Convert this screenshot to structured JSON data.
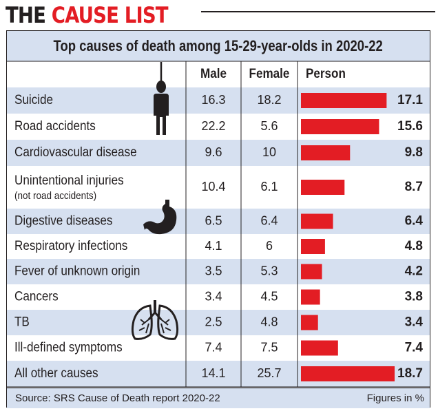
{
  "headline": {
    "part1": "THE ",
    "part2": "CAUSE LIST"
  },
  "chart_data": {
    "type": "table",
    "title": "Top causes of death among 15-29-year-olds in 2020-22",
    "columns": [
      "Male",
      "Female",
      "Person"
    ],
    "rows": [
      {
        "cause": "Suicide",
        "male": "16.3",
        "female": "18.2",
        "person": 17.1
      },
      {
        "cause": "Road accidents",
        "male": "22.2",
        "female": "5.6",
        "person": 15.6
      },
      {
        "cause": "Cardiovascular disease",
        "male": "9.6",
        "female": "10",
        "person": 9.8
      },
      {
        "cause": "Unintentional injuries",
        "note": "(not road accidents)",
        "male": "10.4",
        "female": "6.1",
        "person": 8.7
      },
      {
        "cause": "Digestive diseases",
        "male": "6.5",
        "female": "6.4",
        "person": 6.4
      },
      {
        "cause": "Respiratory infections",
        "male": "4.1",
        "female": "6",
        "person": 4.8
      },
      {
        "cause": "Fever of unknown origin",
        "male": "3.5",
        "female": "5.3",
        "person": 4.2
      },
      {
        "cause": "Cancers",
        "male": "3.4",
        "female": "4.5",
        "person": 3.8
      },
      {
        "cause": "TB",
        "male": "2.5",
        "female": "4.8",
        "person": 3.4
      },
      {
        "cause": "Ill-defined symptoms",
        "male": "7.4",
        "female": "7.5",
        "person": 7.4
      },
      {
        "cause": "All other causes",
        "male": "14.1",
        "female": "25.7",
        "person": 18.7
      }
    ],
    "bar_max": 18.7,
    "bar_color": "#e31d24",
    "row_colors": [
      "#d6e0f0",
      "#ffffff"
    ],
    "icons": [
      "hanging-figure-icon",
      "stomach-icon",
      "lungs-icon"
    ]
  },
  "source": "Source: SRS Cause of Death report 2020-22",
  "units_note": "Figures in %"
}
